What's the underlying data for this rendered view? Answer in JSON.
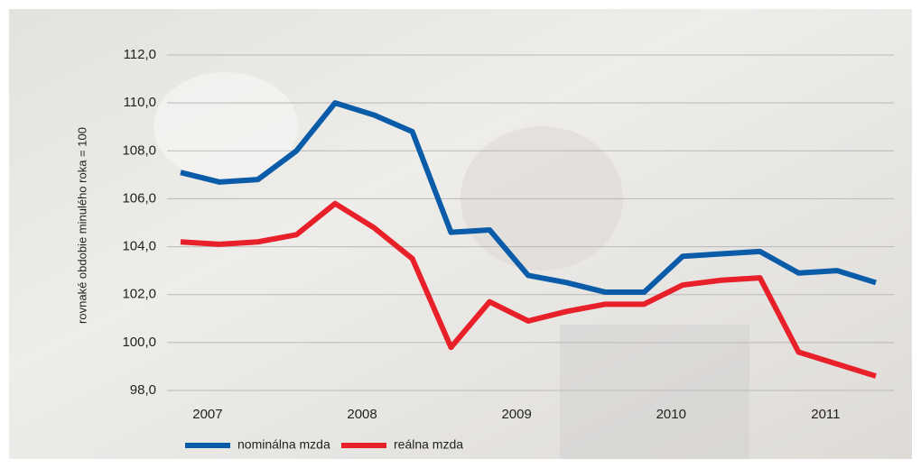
{
  "chart_data": {
    "type": "line",
    "ylabel": "rovnaké obdobie minulého roka = 100",
    "categories": [
      "2007",
      null,
      null,
      null,
      "2008",
      null,
      null,
      null,
      "2009",
      null,
      null,
      null,
      "2010",
      null,
      null,
      null,
      "2011",
      null,
      null
    ],
    "series": [
      {
        "name": "nominálna mzda",
        "color": "#0a5ca8",
        "values": [
          107.1,
          106.7,
          106.8,
          108.0,
          110.0,
          109.5,
          108.8,
          104.6,
          104.7,
          102.8,
          102.5,
          102.1,
          102.1,
          103.6,
          103.7,
          103.8,
          102.9,
          103.0,
          102.5
        ]
      },
      {
        "name": "reálna mzda",
        "color": "#e8202a",
        "values": [
          104.2,
          104.1,
          104.2,
          104.5,
          105.8,
          104.8,
          103.5,
          99.8,
          101.7,
          100.9,
          101.3,
          101.6,
          101.6,
          102.4,
          102.6,
          102.7,
          99.6,
          99.1,
          98.6
        ]
      }
    ],
    "ylim": [
      98,
      112
    ],
    "yticks": [
      {
        "value": 98,
        "label": "98,0"
      },
      {
        "value": 100,
        "label": "100,0"
      },
      {
        "value": 102,
        "label": "102,0"
      },
      {
        "value": 104,
        "label": "104,0"
      },
      {
        "value": 106,
        "label": "106,0"
      },
      {
        "value": 108,
        "label": "108,0"
      },
      {
        "value": 110,
        "label": "110,0"
      },
      {
        "value": 112,
        "label": "112,0"
      }
    ],
    "grid": true,
    "legend": "bottom"
  }
}
